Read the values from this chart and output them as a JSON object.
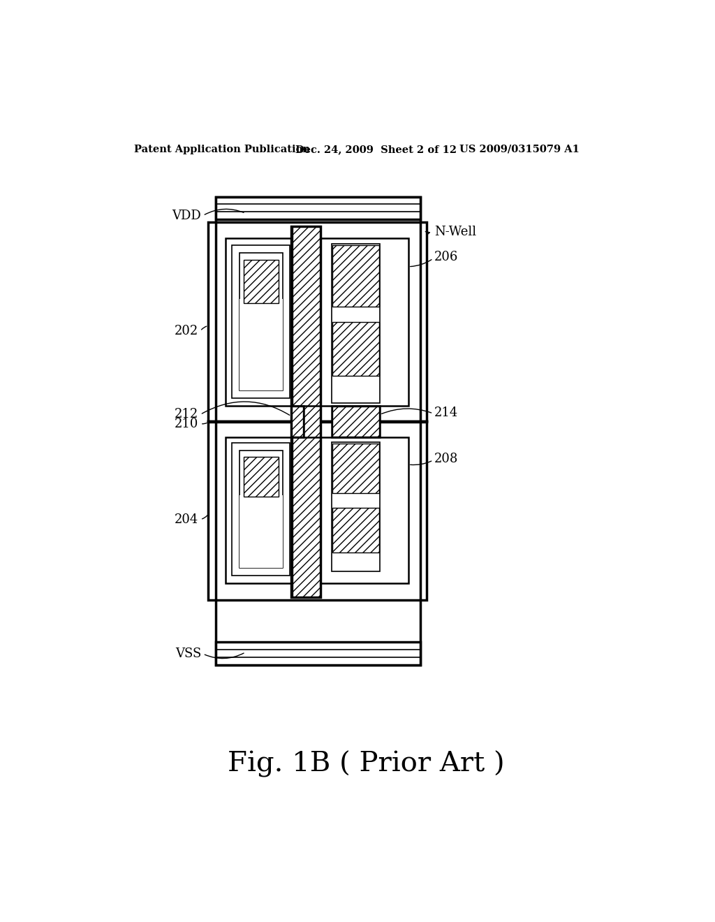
{
  "bg_color": "#ffffff",
  "header_text": "Patent Application Publication",
  "header_date": "Dec. 24, 2009  Sheet 2 of 12",
  "header_patent": "US 2009/0315079 A1",
  "caption": "Fig. 1B ( Prior Art )",
  "label_VDD": "VDD",
  "label_VSS": "VSS",
  "label_202": "202",
  "label_204": "204",
  "label_206": "206",
  "label_208": "208",
  "label_210": "210",
  "label_212": "212",
  "label_214": "214",
  "label_NWell": "N-Well"
}
